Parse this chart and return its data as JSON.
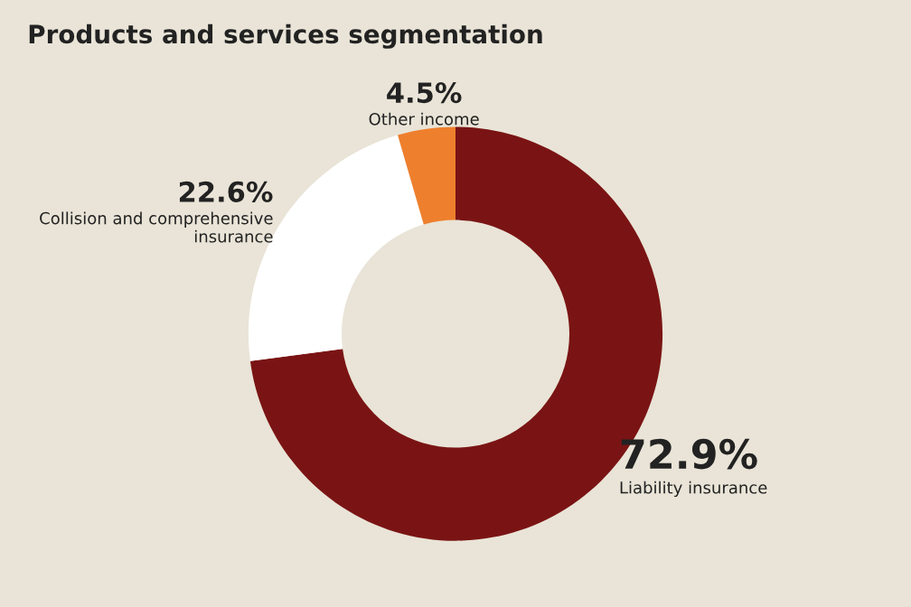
{
  "chart_data": {
    "type": "donut",
    "title": "Products and services segmentation",
    "categories": [
      "Liability insurance",
      "Collision and comprehensive\ninsurance",
      "Other income"
    ],
    "values": [
      72.9,
      22.6,
      4.5
    ],
    "value_labels": [
      "72.9%",
      "22.6%",
      "4.5%"
    ],
    "colors": [
      "#7a1414",
      "#ffffff",
      "#ee7f2d"
    ],
    "legend": false
  }
}
